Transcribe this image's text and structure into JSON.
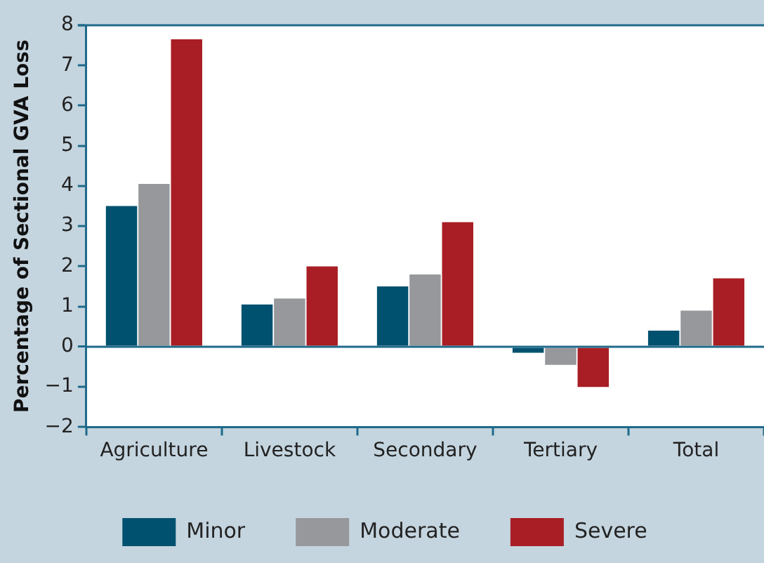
{
  "chart_data": {
    "type": "bar",
    "ylabel": "Percentage of Sectional GVA Loss",
    "categories": [
      "Agriculture",
      "Livestock",
      "Secondary",
      "Tertiary",
      "Total"
    ],
    "series": [
      {
        "name": "Minor",
        "color": "#00506f",
        "values": [
          3.5,
          1.05,
          1.5,
          -0.15,
          0.4
        ]
      },
      {
        "name": "Moderate",
        "color": "#97989c",
        "values": [
          4.05,
          1.2,
          1.8,
          -0.45,
          0.9
        ]
      },
      {
        "name": "Severe",
        "color": "#a81e24",
        "values": [
          7.65,
          2.0,
          3.1,
          -1.0,
          1.7
        ]
      }
    ],
    "ylim": [
      -2,
      8
    ],
    "yticks": [
      -2,
      -1,
      0,
      1,
      2,
      3,
      4,
      5,
      6,
      7,
      8
    ],
    "ref_lines": [
      {
        "axis": "y",
        "value": 0,
        "color": "#1f6a8a"
      }
    ],
    "grid": false,
    "legend": "bottom"
  }
}
